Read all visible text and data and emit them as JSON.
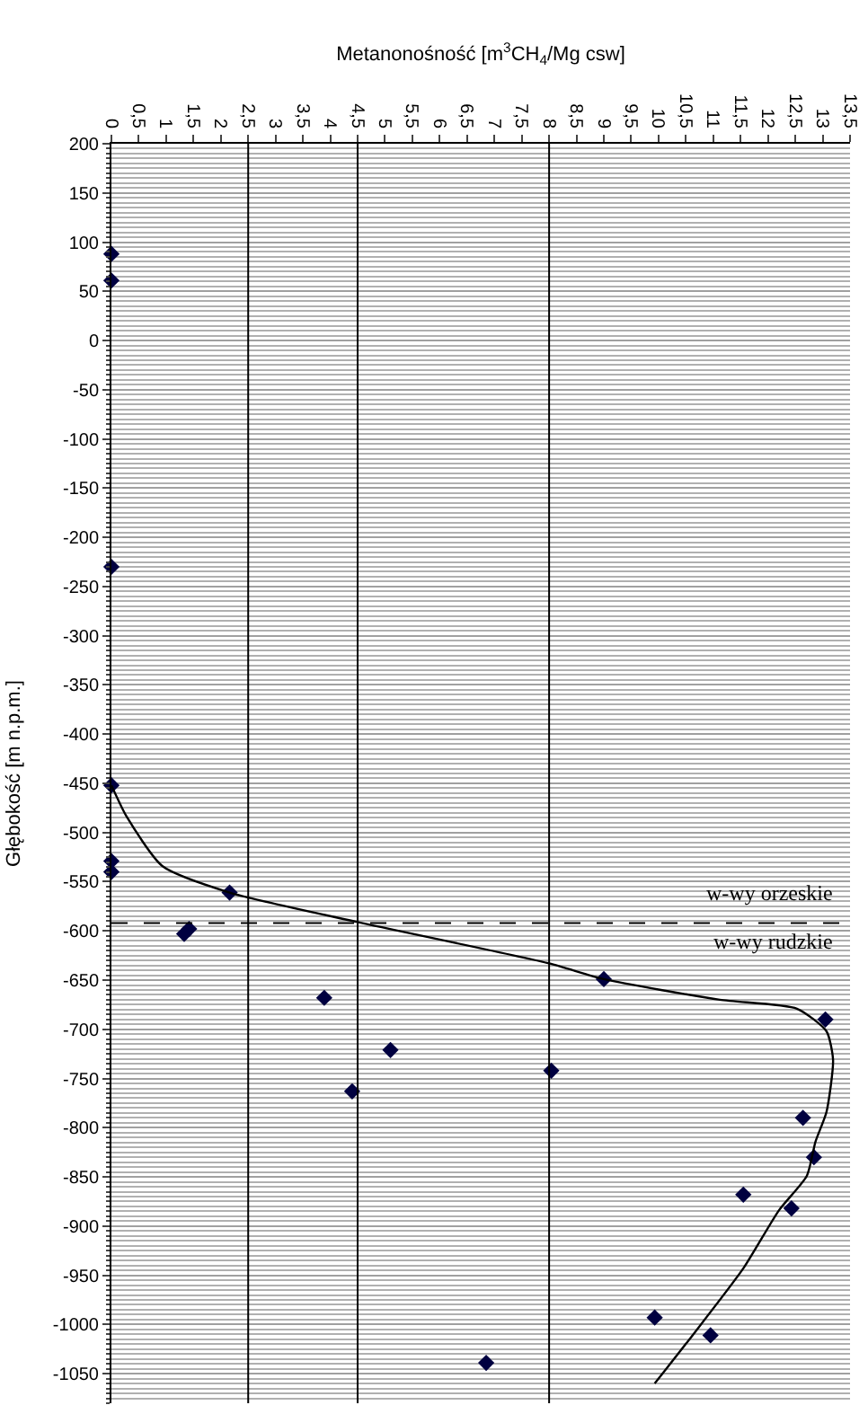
{
  "chart_data": {
    "type": "scatter",
    "xlabel": "Metanonośność [m$^{3}$CH$_{4}$/Mg csw]",
    "ylabel": "Głębokość [m n.p.m.]",
    "xlim": [
      0,
      13.5
    ],
    "xticks": [
      0,
      {
        "value": 0.5,
        "label": "0,5"
      },
      1,
      {
        "value": 1.5,
        "label": "1,5"
      },
      2,
      {
        "value": 2.5,
        "label": "2,5"
      },
      3,
      {
        "value": 3.5,
        "label": "3,5"
      },
      4,
      {
        "value": 4.5,
        "label": "4,5"
      },
      5,
      {
        "value": 5.5,
        "label": "5,5"
      },
      6,
      {
        "value": 6.5,
        "label": "6,5"
      },
      7,
      {
        "value": 7.5,
        "label": "7,5"
      },
      8,
      {
        "value": 8.5,
        "label": "8,5"
      },
      9,
      {
        "value": 9.5,
        "label": "9,5"
      },
      10,
      {
        "value": 10.5,
        "label": "10,5"
      },
      11,
      {
        "value": 11.5,
        "label": "11,5"
      },
      12,
      {
        "value": 12.5,
        "label": "12,5"
      },
      13,
      {
        "value": 13.5,
        "label": "13,5"
      }
    ],
    "ylim": [
      -1080,
      200
    ],
    "yticks": [
      200,
      150,
      100,
      50,
      0,
      -50,
      -100,
      -150,
      -200,
      -250,
      -300,
      -350,
      -400,
      -450,
      -500,
      -550,
      -600,
      -650,
      -700,
      -750,
      -800,
      -850,
      -900,
      -950,
      -1000,
      -1050
    ],
    "grid": "y",
    "series": [
      {
        "marker": "diamond",
        "color": "#000040",
        "x": [
          0,
          0,
          0,
          0,
          0,
          0,
          2.16,
          1.33,
          1.42,
          3.89,
          9.0,
          13.05,
          5.1,
          4.4,
          8.04,
          12.64,
          12.84,
          11.55,
          12.43,
          9.93,
          10.95,
          6.85
        ],
        "values": [
          88,
          61,
          -230,
          -452,
          -529,
          -540,
          -561,
          -603,
          -598,
          -668,
          -649,
          -690,
          -721,
          -763,
          -742,
          -790,
          -830,
          -868,
          -882,
          -993,
          -1011,
          -1039
        ]
      },
      {
        "type": "line",
        "marker": "none",
        "color": "#000000",
        "x": [
          0,
          0.28,
          0.93,
          2.16,
          4.5,
          8.0,
          9.0,
          11.12,
          12.53,
          13.07,
          13.19,
          13.07,
          12.87,
          12.71,
          12.2,
          11.55,
          10.58,
          9.93
        ],
        "values": [
          -452,
          -484,
          -534,
          -561,
          -591,
          -633,
          -649,
          -670,
          -679,
          -702,
          -731,
          -784,
          -814,
          -849,
          -884,
          -943,
          -1014,
          -1060
        ]
      }
    ],
    "ref_lines": [
      {
        "axis": "x",
        "value": 2.5,
        "color": "#000000",
        "line_style": "solid"
      },
      {
        "axis": "x",
        "value": 4.5,
        "color": "#000000",
        "line_style": "solid"
      },
      {
        "axis": "x",
        "value": 8,
        "color": "#000000",
        "line_style": "solid"
      },
      {
        "axis": "y",
        "value": -592,
        "color": "#000000",
        "line_style": "dashed"
      }
    ],
    "annotations": [
      "w-wy orzeskie",
      "w-wy rudzkie"
    ]
  }
}
